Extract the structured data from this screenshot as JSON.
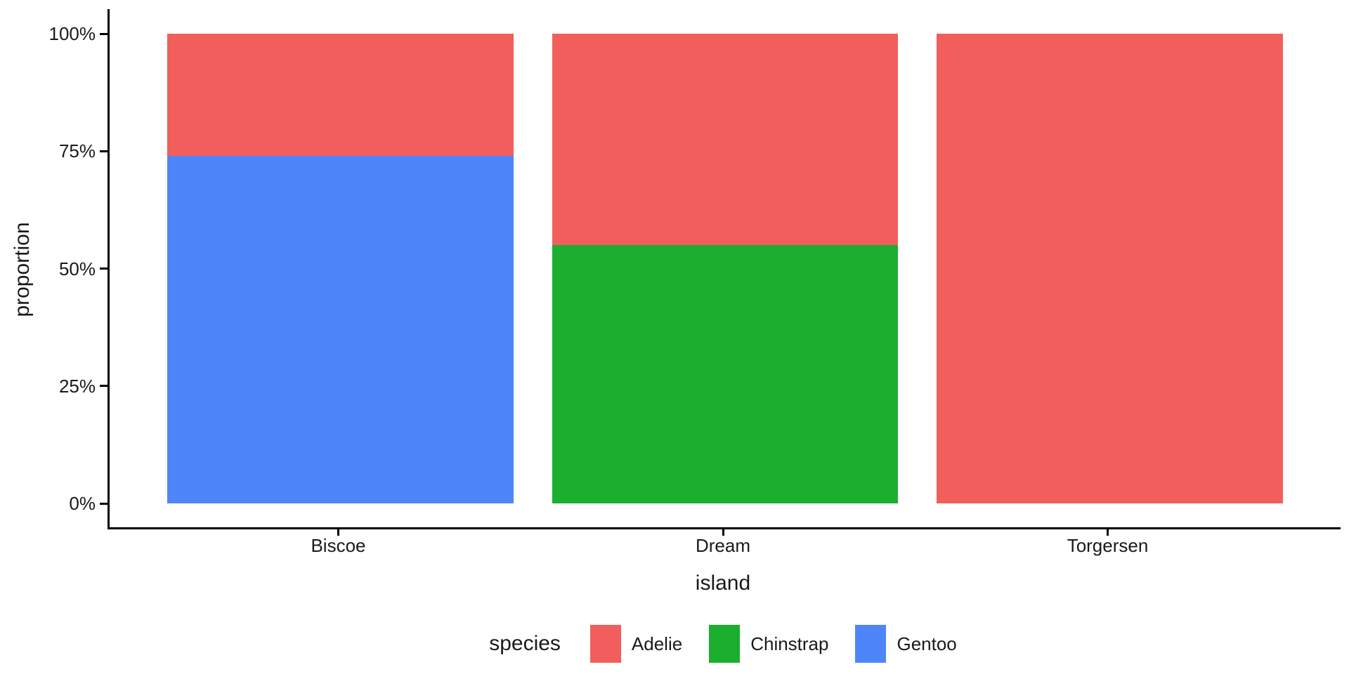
{
  "chart_data": {
    "type": "bar",
    "stacked": true,
    "normalized": true,
    "title": "",
    "categories": [
      "Biscoe",
      "Dream",
      "Torgersen"
    ],
    "series": [
      {
        "name": "Adelie",
        "color": "#F25E5C",
        "values": [
          0.26,
          0.45,
          1.0
        ]
      },
      {
        "name": "Chinstrap",
        "color": "#1BAE2F",
        "values": [
          0.0,
          0.55,
          0.0
        ]
      },
      {
        "name": "Gentoo",
        "color": "#4E86F9",
        "values": [
          0.74,
          0.0,
          0.0
        ]
      }
    ],
    "stack_order_bottom_to_top": [
      "Gentoo",
      "Chinstrap",
      "Adelie"
    ],
    "xlabel": "island",
    "ylabel": "proportion",
    "ylim": [
      0,
      1
    ],
    "y_ticks": [
      {
        "value": 0.0,
        "label": "0%"
      },
      {
        "value": 0.25,
        "label": "25%"
      },
      {
        "value": 0.5,
        "label": "50%"
      },
      {
        "value": 0.75,
        "label": "75%"
      },
      {
        "value": 1.0,
        "label": "100%"
      }
    ],
    "grid": false,
    "bar_band_fraction": 0.9,
    "axis_color": "#000000",
    "background_color": "#FFFFFF",
    "legend": {
      "title": "species",
      "position": "bottom",
      "entries": [
        "Adelie",
        "Chinstrap",
        "Gentoo"
      ]
    }
  },
  "axes": {
    "x": {
      "title": "island"
    },
    "y": {
      "title": "proportion"
    }
  },
  "legend": {
    "title": "species"
  }
}
